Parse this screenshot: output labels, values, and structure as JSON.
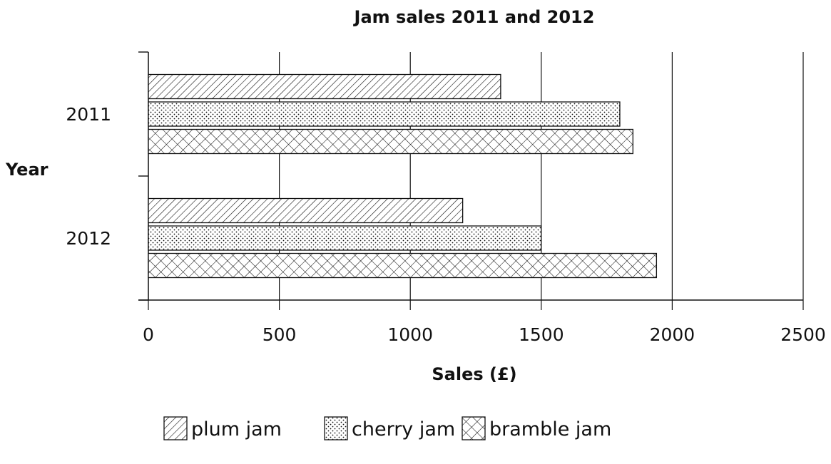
{
  "chart_data": {
    "type": "bar",
    "orientation": "horizontal",
    "title": "Jam sales 2011 and 2012",
    "xlabel": "Sales (£)",
    "ylabel": "Year",
    "categories": [
      "2011",
      "2012"
    ],
    "series": [
      {
        "name": "plum jam",
        "values": [
          1345,
          1200
        ],
        "pattern": "diagonal-hatch"
      },
      {
        "name": "cherry jam",
        "values": [
          1800,
          1500
        ],
        "pattern": "dots"
      },
      {
        "name": "bramble jam",
        "values": [
          1850,
          1940
        ],
        "pattern": "cross-hatch"
      }
    ],
    "xlim": [
      0,
      2500
    ],
    "xticks": [
      0,
      500,
      1000,
      1500,
      2000,
      2500
    ],
    "grid": "vertical",
    "legend_position": "bottom"
  }
}
